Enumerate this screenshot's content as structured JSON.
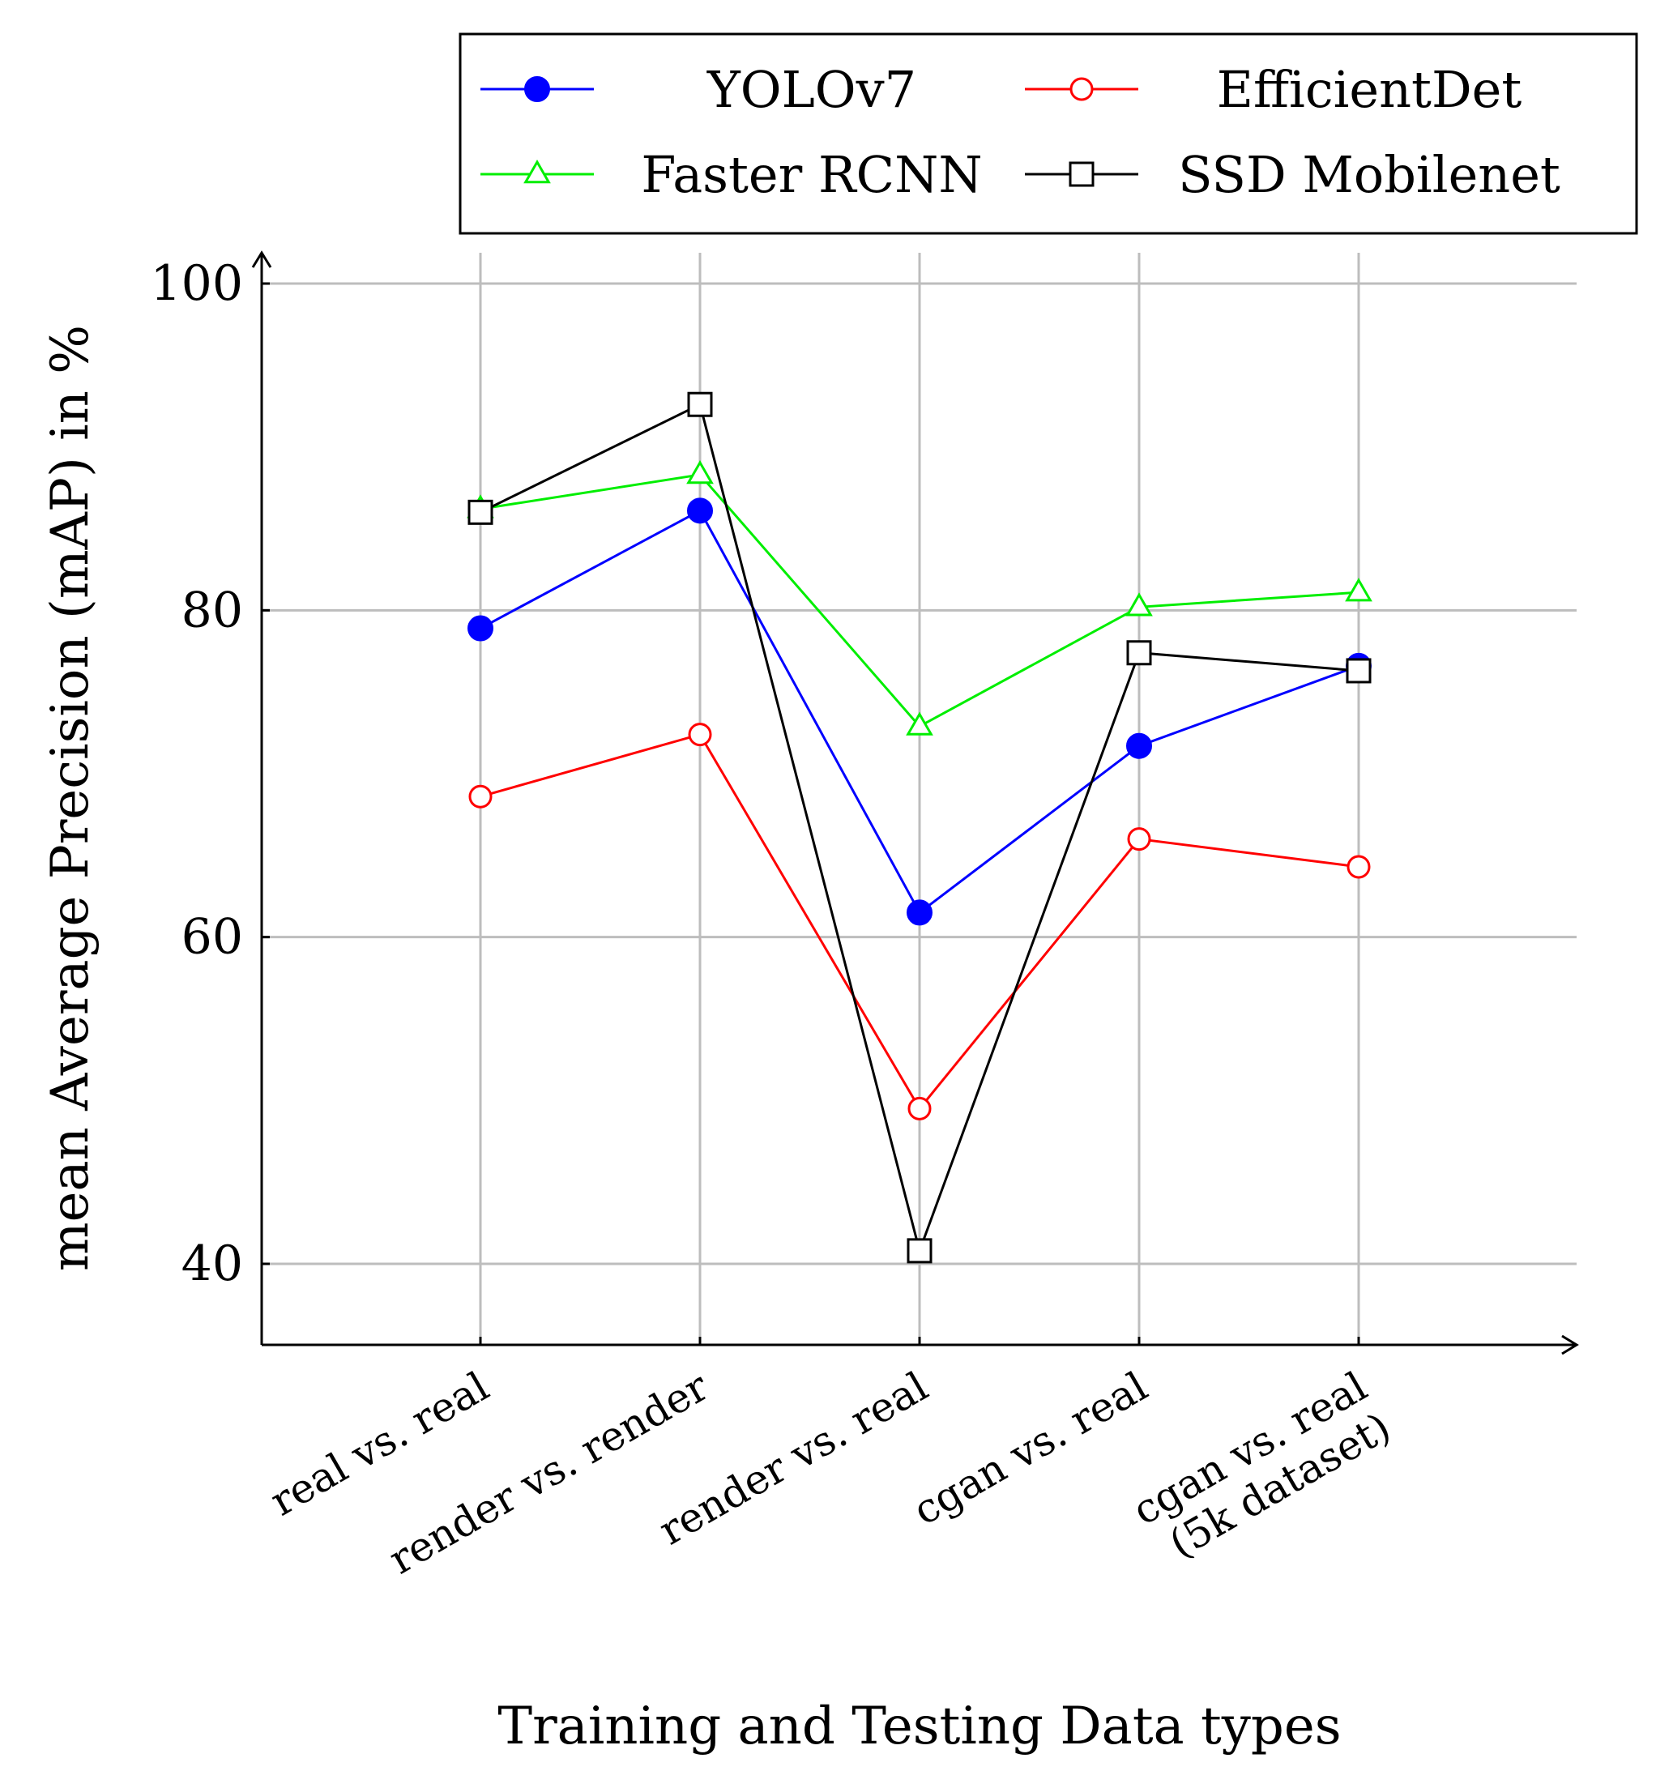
{
  "chart_data": {
    "type": "line",
    "categories": [
      [
        "real vs. real"
      ],
      [
        "render vs. render"
      ],
      [
        "render vs. real"
      ],
      [
        "cgan vs. real"
      ],
      [
        "cgan vs. real",
        "(5k dataset)"
      ]
    ],
    "xlabel": "Training and Testing Data types",
    "ylabel": "mean Average Precision (mAP) in %",
    "ylim": [
      35,
      100
    ],
    "yticks": [
      40,
      60,
      80,
      100
    ],
    "grid": true,
    "legend_position": "top",
    "series": [
      {
        "name": "YOLOv7",
        "color": "#0000ff",
        "marker": "filled-circle",
        "values": [
          78.9,
          86.1,
          61.5,
          71.7,
          76.6
        ]
      },
      {
        "name": "EfficientDet",
        "color": "#ff0000",
        "marker": "open-circle",
        "values": [
          68.6,
          72.4,
          49.5,
          66.0,
          64.3
        ]
      },
      {
        "name": "Faster RCNN",
        "color": "#00ee00",
        "marker": "open-triangle",
        "values": [
          86.2,
          88.3,
          72.9,
          80.2,
          81.1
        ]
      },
      {
        "name": "SSD Mobilenet",
        "color": "#000000",
        "marker": "open-square",
        "values": [
          86.0,
          92.6,
          40.8,
          77.4,
          76.3
        ]
      }
    ]
  }
}
